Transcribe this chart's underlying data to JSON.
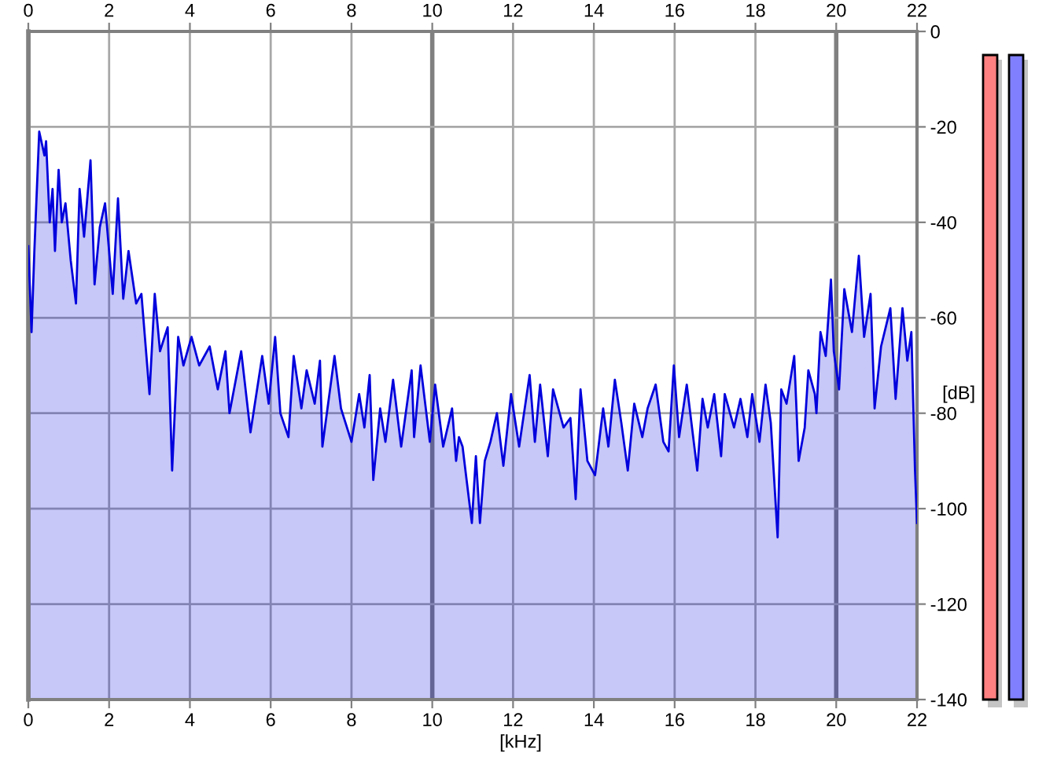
{
  "chart_data": {
    "type": "line",
    "xlabel": "[kHz]",
    "ylabel": "[dB]",
    "x": [
      0,
      0.08,
      0.15,
      0.27,
      0.4,
      0.44,
      0.53,
      0.6,
      0.66,
      0.75,
      0.83,
      0.92,
      1.05,
      1.18,
      1.27,
      1.38,
      1.54,
      1.64,
      1.77,
      1.9,
      2.09,
      2.22,
      2.35,
      2.48,
      2.67,
      2.8,
      3.0,
      3.13,
      3.26,
      3.45,
      3.56,
      3.71,
      3.84,
      4.04,
      4.23,
      4.49,
      4.69,
      4.88,
      4.98,
      5.27,
      5.5,
      5.79,
      5.95,
      6.11,
      6.24,
      6.44,
      6.57,
      6.76,
      6.89,
      7.09,
      7.22,
      7.28,
      7.58,
      7.74,
      8.0,
      8.19,
      8.32,
      8.45,
      8.54,
      8.71,
      8.84,
      9.03,
      9.23,
      9.49,
      9.55,
      9.71,
      9.94,
      10.07,
      10.27,
      10.49,
      10.59,
      10.66,
      10.75,
      10.85,
      10.98,
      11.08,
      11.18,
      11.3,
      11.44,
      11.6,
      11.76,
      11.95,
      12.15,
      12.41,
      12.54,
      12.67,
      12.86,
      12.99,
      13.25,
      13.42,
      13.55,
      13.67,
      13.84,
      14.03,
      14.23,
      14.36,
      14.52,
      14.68,
      14.84,
      15.0,
      15.2,
      15.33,
      15.53,
      15.72,
      15.85,
      15.98,
      16.11,
      16.3,
      16.56,
      16.69,
      16.82,
      16.98,
      17.15,
      17.24,
      17.47,
      17.63,
      17.8,
      17.92,
      18.1,
      18.25,
      18.38,
      18.55,
      18.64,
      18.77,
      18.96,
      19.07,
      19.22,
      19.31,
      19.47,
      19.51,
      19.61,
      19.74,
      19.87,
      19.94,
      20.07,
      20.2,
      20.39,
      20.56,
      20.69,
      20.85,
      20.95,
      21.11,
      21.34,
      21.47,
      21.64,
      21.76,
      21.86,
      21.95,
      22.0
    ],
    "series": [
      {
        "color": "#0000dd",
        "values": [
          -45,
          -63,
          -46,
          -21,
          -26,
          -23,
          -40,
          -33,
          -46,
          -29,
          -40,
          -36,
          -48,
          -57,
          -33,
          -43,
          -27,
          -53,
          -41,
          -36,
          -55,
          -35,
          -56,
          -46,
          -57,
          -55,
          -76,
          -55,
          -67,
          -62,
          -92,
          -64,
          -70,
          -64,
          -70,
          -66,
          -75,
          -67,
          -80,
          -67,
          -84,
          -68,
          -78,
          -64,
          -80,
          -85,
          -68,
          -79,
          -71,
          -78,
          -69,
          -87,
          -68,
          -79,
          -86,
          -76,
          -83,
          -72,
          -94,
          -79,
          -86,
          -73,
          -87,
          -71,
          -85,
          -70,
          -86,
          -74,
          -87,
          -79,
          -90,
          -85,
          -87,
          -94,
          -103,
          -89,
          -103,
          -90,
          -86,
          -80,
          -91,
          -76,
          -87,
          -72,
          -86,
          -74,
          -89,
          -75,
          -83,
          -81,
          -98,
          -75,
          -90,
          -93,
          -79,
          -87,
          -73,
          -82,
          -92,
          -78,
          -85,
          -79,
          -74,
          -86,
          -88,
          -70,
          -85,
          -74,
          -92,
          -77,
          -83,
          -76,
          -89,
          -76,
          -83,
          -77,
          -85,
          -76,
          -86,
          -74,
          -82,
          -106,
          -75,
          -78,
          -68,
          -90,
          -83,
          -71,
          -76,
          -80,
          -63,
          -68,
          -52,
          -67,
          -75,
          -54,
          -63,
          -47,
          -64,
          -55,
          -79,
          -66,
          -58,
          -77,
          -58,
          -69,
          -63,
          -92,
          -103
        ],
        "upper": [
          -45,
          -63,
          -46,
          -21,
          -26,
          -23,
          -40,
          -33,
          -46,
          -29,
          -40,
          -36,
          -48,
          -57,
          -33,
          -43,
          -27,
          -53,
          -41,
          -36,
          -55,
          -35,
          -56,
          -46,
          -57,
          -55,
          -76,
          -55,
          -67,
          -62,
          -92,
          -64,
          -70,
          -64,
          -70,
          -66,
          -75,
          -67,
          -80,
          -67,
          -84,
          -68,
          -78,
          -64,
          -80,
          -85,
          -68,
          -79,
          -71,
          -78,
          -69,
          -87,
          -68,
          -79,
          -86,
          -76,
          -83,
          -72,
          -94,
          -79,
          -86,
          -73,
          -87,
          -71,
          -85,
          -70,
          -86,
          -74,
          -87,
          -79,
          -90,
          -85,
          -87,
          -94,
          -103,
          -89,
          -103,
          -90,
          -86,
          -80,
          -91,
          -76,
          -87,
          -72,
          -86,
          -74,
          -89,
          -75,
          -83,
          -81,
          -98,
          -75,
          -90,
          -93,
          -79,
          -87,
          -73,
          -82,
          -92,
          -78,
          -85,
          -79,
          -74,
          -86,
          -88,
          -70,
          -85,
          -74,
          -92,
          -77,
          -83,
          -76,
          -89,
          -76,
          -83,
          -77,
          -85,
          -76,
          -86,
          -74,
          -82,
          -106,
          -75,
          -78,
          -68,
          -90,
          -83,
          -71,
          -76,
          -80,
          -63,
          -68,
          -52,
          -67,
          -75,
          -54,
          -63,
          -47,
          -64,
          -55,
          -79,
          -66,
          -58,
          -77,
          -58,
          -69,
          -63,
          -92,
          -103
        ],
        "lower": [
          -140,
          -140,
          -140,
          -140,
          -140,
          -140,
          -140,
          -140,
          -140,
          -140,
          -140,
          -140,
          -140,
          -140,
          -140,
          -140,
          -140,
          -140,
          -140,
          -140,
          -140,
          -140,
          -140,
          -140,
          -140,
          -140,
          -140,
          -140,
          -140,
          -140,
          -140,
          -140,
          -140,
          -140,
          -140,
          -140,
          -140,
          -140,
          -140,
          -140,
          -140,
          -140,
          -140,
          -140,
          -140,
          -140,
          -140,
          -140,
          -140,
          -140,
          -140,
          -140,
          -140,
          -140,
          -140,
          -140,
          -140,
          -140,
          -140,
          -140,
          -140,
          -140,
          -140,
          -140,
          -140,
          -140,
          -140,
          -140,
          -140,
          -140,
          -140,
          -140,
          -140,
          -140,
          -140,
          -140,
          -140,
          -140,
          -140,
          -140,
          -140,
          -140,
          -140,
          -140,
          -140,
          -140,
          -140,
          -140,
          -140,
          -140,
          -140,
          -140,
          -140,
          -140,
          -140,
          -140,
          -140,
          -140,
          -140,
          -140,
          -140,
          -140,
          -140,
          -140,
          -140,
          -140,
          -140,
          -140,
          -140,
          -140,
          -140,
          -140,
          -140,
          -140,
          -140,
          -140,
          -140,
          -140,
          -140,
          -140,
          -140,
          -140,
          -140,
          -140,
          -140,
          -140,
          -140,
          -140,
          -140,
          -140,
          -140,
          -140,
          -140,
          -140,
          -140,
          -140,
          -140,
          -140,
          -140,
          -140,
          -140,
          -140,
          -140,
          -140,
          -140,
          -140,
          -140,
          -140,
          -140
        ]
      }
    ],
    "xlim": [
      0,
      22
    ],
    "xticks": [
      0,
      2,
      4,
      6,
      8,
      10,
      12,
      14,
      16,
      18,
      20,
      22
    ],
    "x2lim": [
      0,
      22
    ],
    "x2ticks": [
      0,
      2,
      4,
      6,
      8,
      10,
      12,
      14,
      16,
      18,
      20,
      22
    ],
    "ylim": [
      -140,
      0
    ],
    "yticks": [
      0,
      -20,
      -40,
      -60,
      -80,
      -100,
      -120,
      -140
    ],
    "grid": true,
    "marker": "none",
    "line_style": "solid"
  }
}
